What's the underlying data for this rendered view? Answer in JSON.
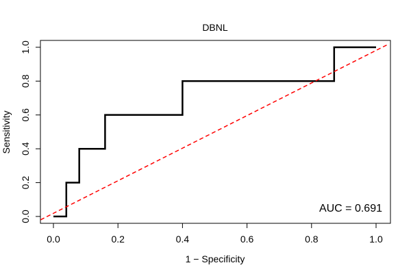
{
  "chart_data": {
    "type": "line",
    "title": "DBNL",
    "xlabel": "1 − Specificity",
    "ylabel": "Sensitivity",
    "xlim": [
      0,
      1
    ],
    "ylim": [
      0,
      1
    ],
    "x_ticks": [
      "0.0",
      "0.2",
      "0.4",
      "0.6",
      "0.8",
      "1.0"
    ],
    "y_ticks": [
      "0.0",
      "0.2",
      "0.4",
      "0.6",
      "0.8",
      "1.0"
    ],
    "series": [
      {
        "name": "ROC curve",
        "color": "#000000",
        "points": [
          [
            0.0,
            0.0
          ],
          [
            0.04,
            0.0
          ],
          [
            0.04,
            0.2
          ],
          [
            0.08,
            0.2
          ],
          [
            0.08,
            0.4
          ],
          [
            0.16,
            0.4
          ],
          [
            0.16,
            0.6
          ],
          [
            0.4,
            0.6
          ],
          [
            0.4,
            0.8
          ],
          [
            0.87,
            0.8
          ],
          [
            0.87,
            1.0
          ],
          [
            1.0,
            1.0
          ]
        ]
      },
      {
        "name": "reference diagonal",
        "color": "#ff0000",
        "style": "dashed",
        "points": [
          [
            -0.04,
            -0.02
          ],
          [
            1.04,
            1.02
          ]
        ]
      }
    ],
    "annotation": "AUC = 0.691"
  }
}
